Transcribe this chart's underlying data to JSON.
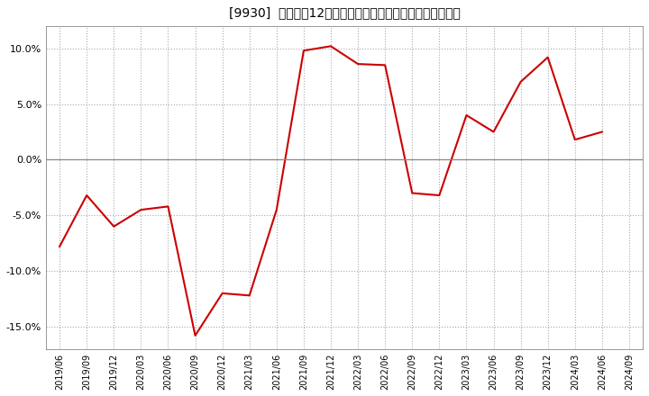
{
  "title": "[9930]  売上高の12か月移動合計の対前年同期増減率の推移",
  "line_color": "#cc0000",
  "background_color": "#ffffff",
  "grid_color": "#aaaaaa",
  "zero_line_color": "#888888",
  "x_labels": [
    "2019/06",
    "2019/09",
    "2019/12",
    "2020/03",
    "2020/06",
    "2020/09",
    "2020/12",
    "2021/03",
    "2021/06",
    "2021/09",
    "2021/12",
    "2022/03",
    "2022/06",
    "2022/09",
    "2022/12",
    "2023/03",
    "2023/06",
    "2023/09",
    "2023/12",
    "2024/03",
    "2024/06",
    "2024/09"
  ],
  "y_values": [
    -7.8,
    -3.2,
    -6.0,
    -4.5,
    -4.2,
    -15.8,
    -12.0,
    -12.2,
    -4.5,
    9.8,
    10.2,
    8.6,
    8.5,
    -3.0,
    -3.2,
    4.0,
    2.5,
    7.0,
    9.2,
    1.8,
    2.5,
    null
  ],
  "ylim": [
    -17,
    12
  ],
  "yticks": [
    -15.0,
    -10.0,
    -5.0,
    0.0,
    5.0,
    10.0
  ],
  "figsize": [
    7.2,
    4.4
  ],
  "dpi": 100
}
